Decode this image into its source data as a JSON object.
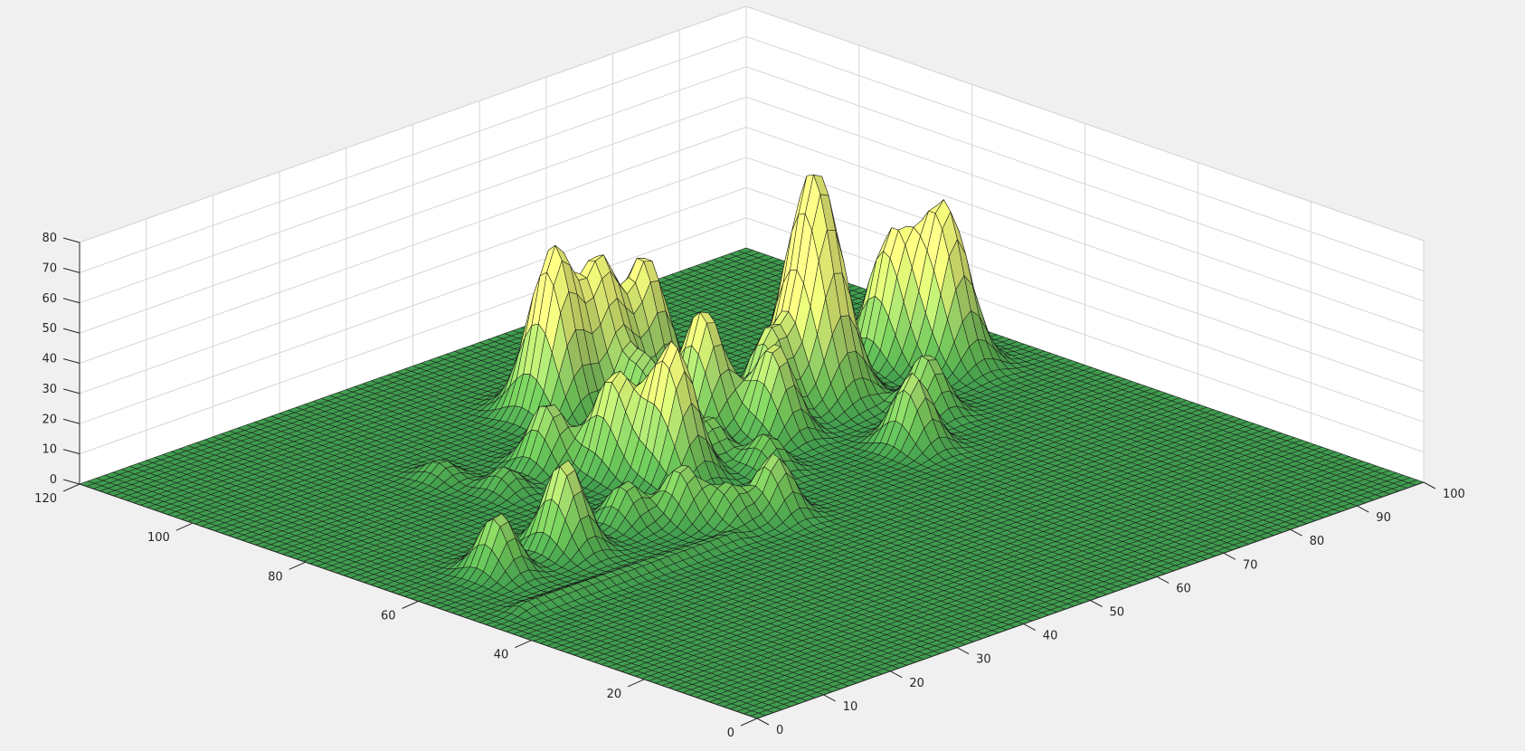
{
  "chart_data": {
    "type": "surface",
    "title": "",
    "xlabel": "",
    "ylabel": "",
    "zlabel": "",
    "grid": true,
    "view": "3-d perspective, default azimuth/elevation",
    "colormap": [
      "#3f9c4e",
      "#6cbf55",
      "#9fd36a",
      "#cfe66e",
      "#f3fa7a"
    ],
    "xlim": [
      0,
      100
    ],
    "ylim": [
      0,
      120
    ],
    "zlim": [
      0,
      80
    ],
    "xticks": [
      "0",
      "10",
      "20",
      "30",
      "40",
      "50",
      "60",
      "70",
      "80",
      "90",
      "100"
    ],
    "yticks": [
      "0",
      "20",
      "40",
      "60",
      "80",
      "100",
      "120"
    ],
    "zticks": [
      "0",
      "10",
      "20",
      "30",
      "40",
      "50",
      "60",
      "70",
      "80"
    ],
    "grid_resolution": {
      "x": 80,
      "y": 100
    },
    "peaks": [
      {
        "x": 50,
        "y": 95,
        "height": 55
      },
      {
        "x": 56,
        "y": 94,
        "height": 46
      },
      {
        "x": 62,
        "y": 93,
        "height": 44
      },
      {
        "x": 73,
        "y": 76,
        "height": 76
      },
      {
        "x": 86,
        "y": 78,
        "height": 40
      },
      {
        "x": 90,
        "y": 73,
        "height": 52
      },
      {
        "x": 58,
        "y": 78,
        "height": 40
      },
      {
        "x": 62,
        "y": 70,
        "height": 30
      },
      {
        "x": 66,
        "y": 76,
        "height": 25
      },
      {
        "x": 78,
        "y": 62,
        "height": 20
      },
      {
        "x": 70,
        "y": 55,
        "height": 24
      },
      {
        "x": 42,
        "y": 75,
        "height": 32
      },
      {
        "x": 38,
        "y": 82,
        "height": 22
      },
      {
        "x": 45,
        "y": 68,
        "height": 45
      },
      {
        "x": 52,
        "y": 70,
        "height": 14
      },
      {
        "x": 54,
        "y": 62,
        "height": 12
      },
      {
        "x": 56,
        "y": 86,
        "height": 18
      },
      {
        "x": 45,
        "y": 50,
        "height": 20
      },
      {
        "x": 40,
        "y": 52,
        "height": 12
      },
      {
        "x": 37,
        "y": 57,
        "height": 18
      },
      {
        "x": 32,
        "y": 61,
        "height": 14
      },
      {
        "x": 22,
        "y": 60,
        "height": 30
      },
      {
        "x": 12,
        "y": 60,
        "height": 20
      },
      {
        "x": 30,
        "y": 80,
        "height": 8
      },
      {
        "x": 28,
        "y": 89,
        "height": 6
      }
    ],
    "ridges": [
      {
        "from": [
          6,
          48
        ],
        "to": [
          36,
          47
        ],
        "height": 3
      }
    ]
  }
}
